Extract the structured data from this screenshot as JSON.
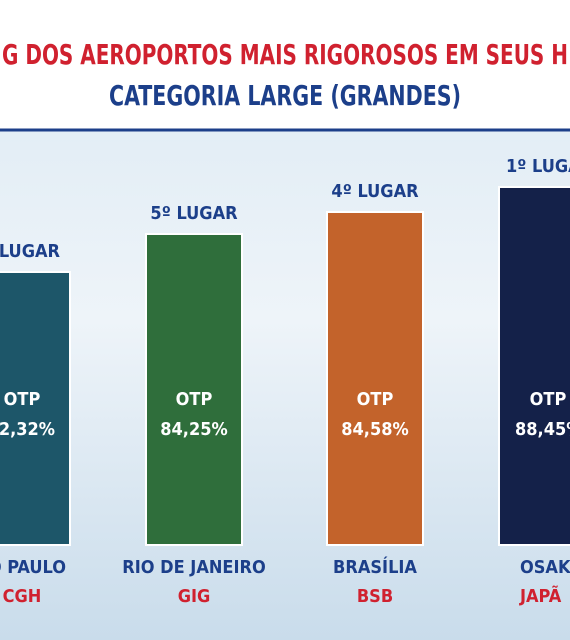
{
  "header": {
    "title": "G DOS AEROPORTOS MAIS RIGOROSOS EM SEUS H",
    "subtitle": "CATEGORIA LARGE (GRANDES)"
  },
  "items": [
    {
      "place": "LUGAR",
      "label": "OTP",
      "value": "2,32%",
      "city": "O PAULO",
      "code": "CGH"
    },
    {
      "place": "5º LUGAR",
      "label": "OTP",
      "value": "84,25%",
      "city": "RIO DE JANEIRO",
      "code": "GIG"
    },
    {
      "place": "4º LUGAR",
      "label": "OTP",
      "value": "84,58%",
      "city": "BRASÍLIA",
      "code": "BSB"
    },
    {
      "place": "1º LUGA",
      "label": "OTP",
      "value": "88,45%",
      "city": "OSAKA",
      "code": "JAPÃ"
    }
  ]
}
